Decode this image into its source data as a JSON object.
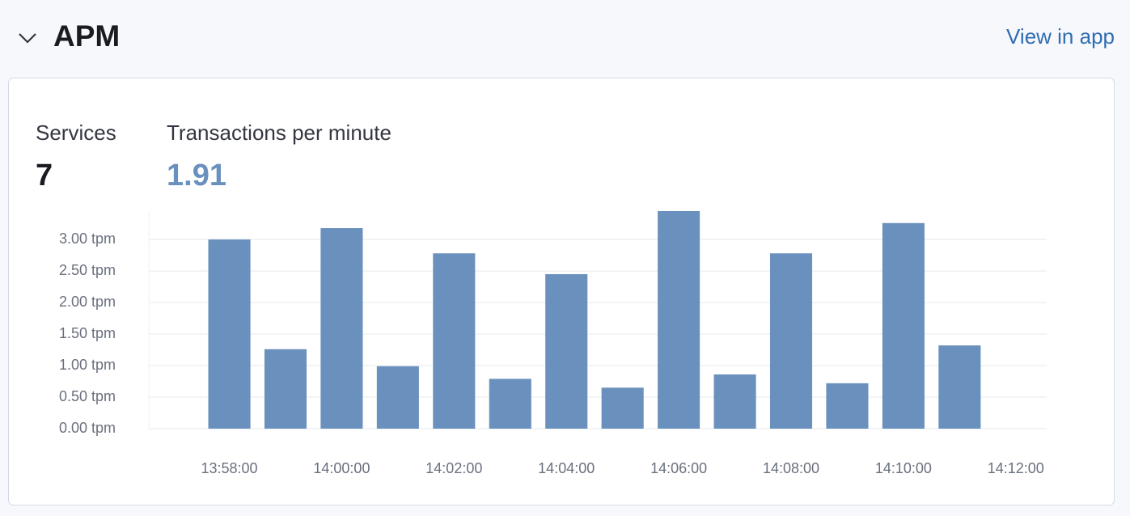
{
  "header": {
    "title": "APM",
    "link": "View in app"
  },
  "stats": [
    {
      "label": "Services",
      "value": 7
    },
    {
      "label": "Transactions per minute",
      "value": 1.91
    }
  ],
  "chart_data": {
    "type": "bar",
    "x": [
      "13:58:00",
      "13:59:00",
      "14:00:00",
      "14:01:00",
      "14:02:00",
      "14:03:00",
      "14:04:00",
      "14:05:00",
      "14:06:00",
      "14:07:00",
      "14:08:00",
      "14:09:00",
      "14:10:00",
      "14:11:00"
    ],
    "values": [
      3.0,
      1.26,
      3.18,
      0.99,
      2.78,
      0.79,
      2.45,
      0.65,
      3.45,
      0.86,
      2.78,
      0.72,
      3.26,
      1.32
    ],
    "color": "#6a91bd",
    "xlim": [
      "13:56:34",
      "14:12:33"
    ],
    "xticks": [
      "13:58:00",
      "14:00:00",
      "14:02:00",
      "14:04:00",
      "14:06:00",
      "14:08:00",
      "14:10:00",
      "14:12:00"
    ],
    "ylim": [
      0,
      3.45
    ],
    "yticks": [
      {
        "value": 0,
        "label": "0.00 tpm"
      },
      {
        "value": 0.5,
        "label": "0.50 tpm"
      },
      {
        "value": 1,
        "label": "1.00 tpm"
      },
      {
        "value": 1.5,
        "label": "1.50 tpm"
      },
      {
        "value": 2,
        "label": "2.00 tpm"
      },
      {
        "value": 2.5,
        "label": "2.50 tpm"
      },
      {
        "value": 3,
        "label": "3.00 tpm"
      }
    ],
    "grid": true
  }
}
